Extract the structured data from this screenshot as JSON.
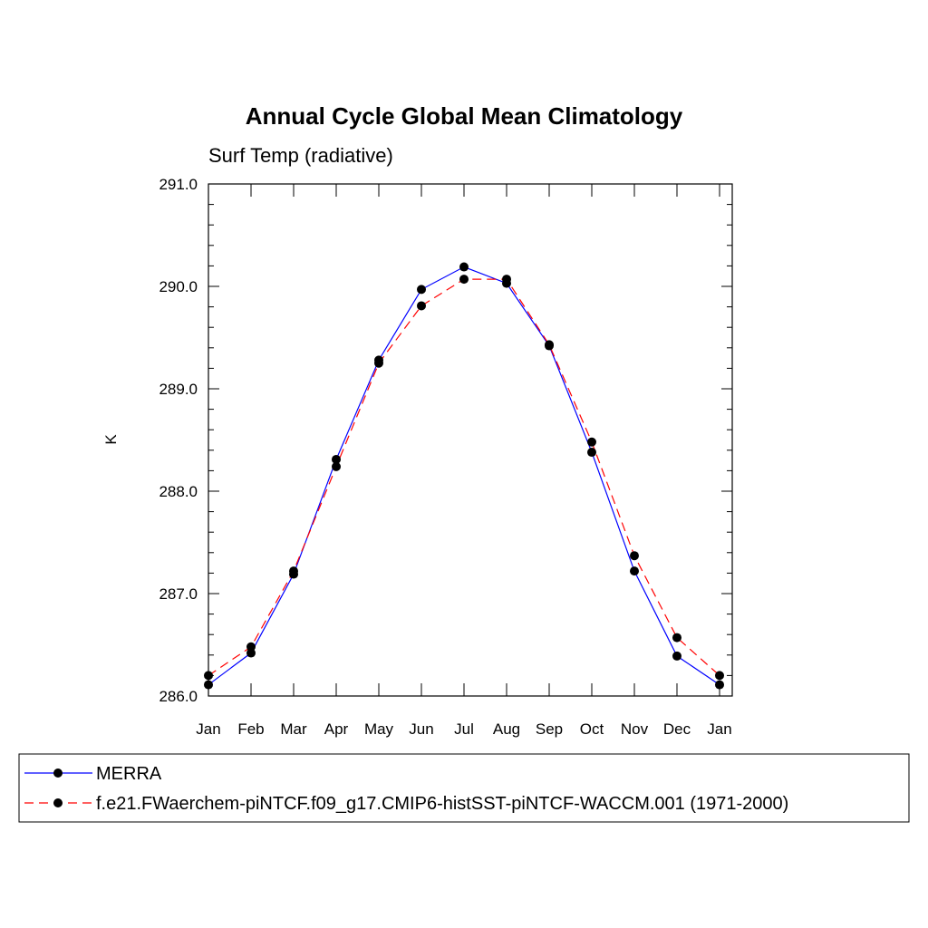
{
  "chart_data": {
    "type": "line",
    "title": "Annual Cycle Global Mean Climatology",
    "subtitle": "Surf Temp (radiative)",
    "ylabel": "K",
    "xlabel": "",
    "categories": [
      "Jan",
      "Feb",
      "Mar",
      "Apr",
      "May",
      "Jun",
      "Jul",
      "Aug",
      "Sep",
      "Oct",
      "Nov",
      "Dec",
      "Jan"
    ],
    "ylim": [
      286.0,
      291.0
    ],
    "yticks": [
      "286.0",
      "287.0",
      "288.0",
      "289.0",
      "290.0",
      "291.0"
    ],
    "grid": false,
    "legend": "bottom",
    "series": [
      {
        "name": "MERRA",
        "color": "#0000ff",
        "dash": "solid",
        "values": [
          286.11,
          286.42,
          287.19,
          288.31,
          289.28,
          289.97,
          290.19,
          290.03,
          289.42,
          288.38,
          287.22,
          286.39,
          286.11
        ]
      },
      {
        "name": "f.e21.FWaerchem-piNTCF.f09_g17.CMIP6-histSST-piNTCF-WACCM.001 (1971-2000)",
        "color": "#ff0000",
        "dash": "dashed",
        "values": [
          286.2,
          286.48,
          287.22,
          288.24,
          289.25,
          289.81,
          290.07,
          290.07,
          289.43,
          288.48,
          287.37,
          286.57,
          286.2
        ]
      }
    ]
  }
}
